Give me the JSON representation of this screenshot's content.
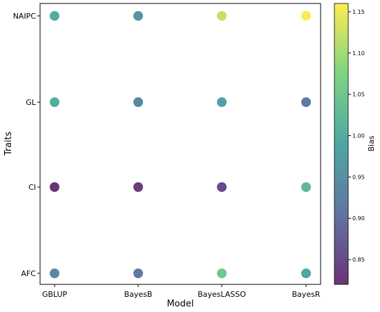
{
  "chart_data": {
    "type": "scatter",
    "xlabel": "Model",
    "ylabel": "Traits",
    "x_categories": [
      "GBLUP",
      "BayesB",
      "BayesLASSO",
      "BayesR"
    ],
    "y_categories": [
      "AFC",
      "CI",
      "GL",
      "NAIPC"
    ],
    "points": [
      {
        "x": "GBLUP",
        "y": "NAIPC",
        "bias": 1.0
      },
      {
        "x": "BayesB",
        "y": "NAIPC",
        "bias": 0.96
      },
      {
        "x": "BayesLASSO",
        "y": "NAIPC",
        "bias": 1.12
      },
      {
        "x": "BayesR",
        "y": "NAIPC",
        "bias": 1.16
      },
      {
        "x": "GBLUP",
        "y": "GL",
        "bias": 1.0
      },
      {
        "x": "BayesB",
        "y": "GL",
        "bias": 0.94
      },
      {
        "x": "BayesLASSO",
        "y": "GL",
        "bias": 0.98
      },
      {
        "x": "BayesR",
        "y": "GL",
        "bias": 0.91
      },
      {
        "x": "GBLUP",
        "y": "CI",
        "bias": 0.82
      },
      {
        "x": "BayesB",
        "y": "CI",
        "bias": 0.83
      },
      {
        "x": "BayesLASSO",
        "y": "CI",
        "bias": 0.85
      },
      {
        "x": "BayesR",
        "y": "CI",
        "bias": 1.02
      },
      {
        "x": "GBLUP",
        "y": "AFC",
        "bias": 0.94
      },
      {
        "x": "BayesB",
        "y": "AFC",
        "bias": 0.91
      },
      {
        "x": "BayesLASSO",
        "y": "AFC",
        "bias": 1.05
      },
      {
        "x": "BayesR",
        "y": "AFC",
        "bias": 0.99
      }
    ],
    "colorbar": {
      "label": "Bias",
      "colormap": "viridis",
      "range": [
        0.82,
        1.16
      ],
      "ticks": [
        0.85,
        0.9,
        0.95,
        1.0,
        1.05,
        1.1,
        1.15
      ],
      "tick_labels": [
        "0.85",
        "0.90",
        "0.95",
        "1.00",
        "1.05",
        "1.10",
        "1.15"
      ]
    },
    "grid": false
  }
}
